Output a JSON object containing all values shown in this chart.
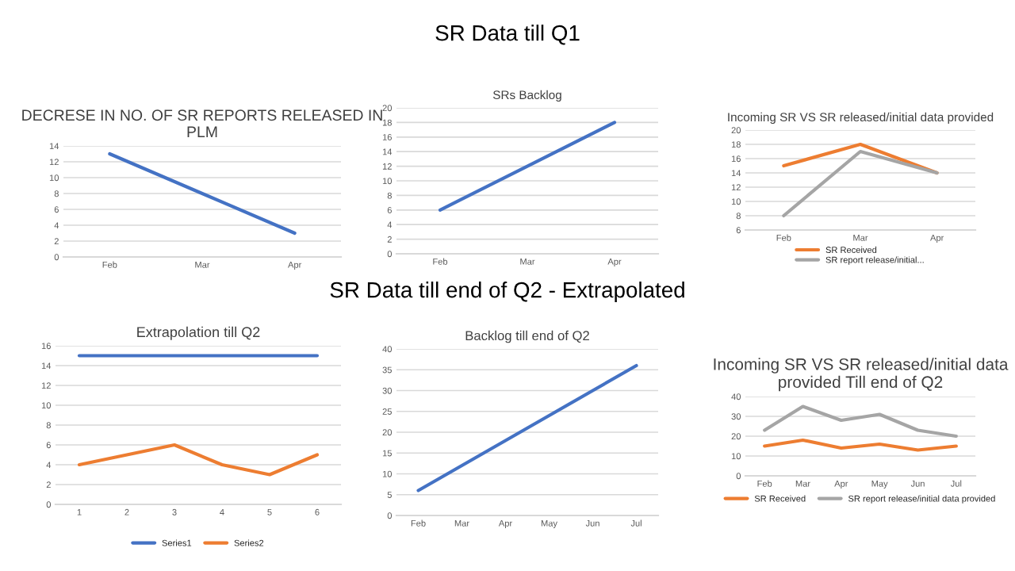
{
  "chart_data": [
    {
      "type": "line",
      "title": "DECRESE IN NO. OF SR REPORTS RELEASED IN PLM",
      "annotations": [
        "SR Data till Q1"
      ],
      "categories": [
        "Feb",
        "Mar",
        "Apr"
      ],
      "series": [
        {
          "color": "#4472c4",
          "values": [
            13,
            8,
            3
          ]
        }
      ],
      "ylim": [
        0,
        14
      ],
      "yticks": [
        0,
        2,
        4,
        6,
        8,
        10,
        12,
        14
      ],
      "grid": "y"
    },
    {
      "type": "line",
      "title": "SRs Backlog",
      "categories": [
        "Feb",
        "Mar",
        "Apr"
      ],
      "series": [
        {
          "color": "#4472c4",
          "values": [
            6,
            12,
            18
          ]
        }
      ],
      "ylim": [
        0,
        20
      ],
      "yticks": [
        0,
        2,
        4,
        6,
        8,
        10,
        12,
        14,
        16,
        18,
        20
      ],
      "grid": "y"
    },
    {
      "type": "line",
      "title": "Incoming SR VS SR released/initial data provided",
      "categories": [
        "Feb",
        "Mar",
        "Apr"
      ],
      "series": [
        {
          "name": "SR Received",
          "color": "#ed7d31",
          "values": [
            15,
            18,
            14
          ]
        },
        {
          "name": "SR report release/initial...",
          "color": "#a5a5a5",
          "values": [
            8,
            17,
            14
          ]
        }
      ],
      "ylim": [
        6,
        20
      ],
      "yticks": [
        6,
        8,
        10,
        12,
        14,
        16,
        18,
        20
      ],
      "grid": "y",
      "legend": "bottom"
    },
    {
      "type": "line",
      "title": "Extrapolation till Q2",
      "annotations": [
        "SR Data till end of Q2 - Extrapolated"
      ],
      "categories": [
        "1",
        "2",
        "3",
        "4",
        "5",
        "6"
      ],
      "series": [
        {
          "name": "Series1",
          "color": "#4472c4",
          "values": [
            15,
            15,
            15,
            15,
            15,
            15
          ]
        },
        {
          "name": "Series2",
          "color": "#ed7d31",
          "values": [
            4,
            5,
            6,
            4,
            3,
            5
          ]
        }
      ],
      "ylim": [
        0,
        16
      ],
      "yticks": [
        0,
        2,
        4,
        6,
        8,
        10,
        12,
        14,
        16
      ],
      "grid": "y",
      "legend": "bottom"
    },
    {
      "type": "line",
      "title": "Backlog till end of Q2",
      "categories": [
        "Feb",
        "Mar",
        "Apr",
        "May",
        "Jun",
        "Jul"
      ],
      "series": [
        {
          "color": "#4472c4",
          "values": [
            6,
            12,
            18,
            24,
            30,
            36
          ]
        }
      ],
      "ylim": [
        0,
        40
      ],
      "yticks": [
        0,
        5,
        10,
        15,
        20,
        25,
        30,
        35,
        40
      ],
      "grid": "y"
    },
    {
      "type": "line",
      "title": "Incoming SR VS SR released/initial data provided Till end of Q2",
      "categories": [
        "Feb",
        "Mar",
        "Apr",
        "May",
        "Jun",
        "Jul"
      ],
      "series": [
        {
          "name": "SR Received",
          "color": "#ed7d31",
          "values": [
            15,
            18,
            14,
            16,
            13,
            15
          ]
        },
        {
          "name": "SR report release/initial data provided",
          "color": "#a5a5a5",
          "values": [
            23,
            35,
            28,
            31,
            23,
            20
          ]
        }
      ],
      "ylim": [
        0,
        40
      ],
      "yticks": [
        0,
        10,
        20,
        30,
        40
      ],
      "grid": "y",
      "legend": "bottom"
    }
  ]
}
